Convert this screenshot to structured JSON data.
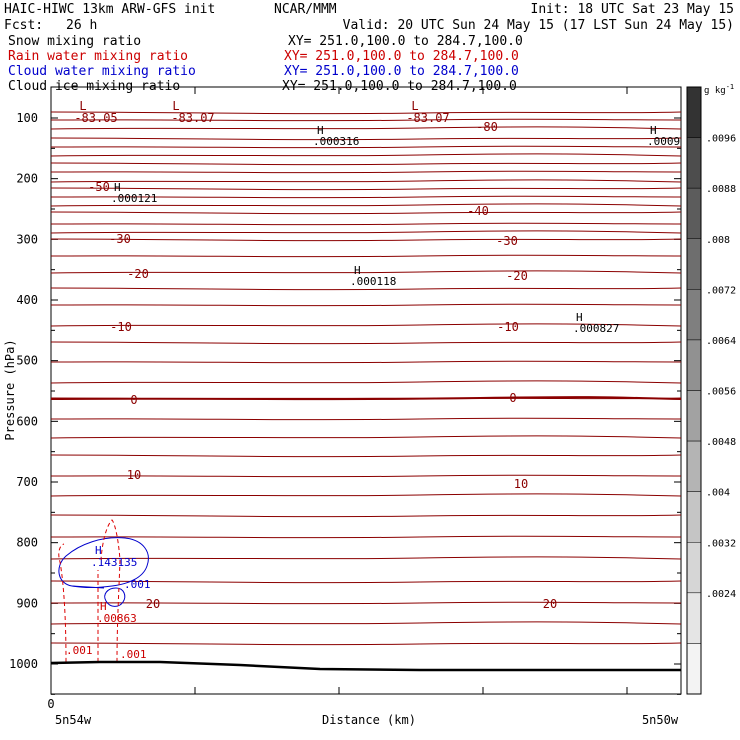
{
  "header": {
    "model": "HAIC-HIWC 13km ARW-GFS init",
    "org": "NCAR/MMM",
    "init": "Init: 18 UTC Sat 23 May 15",
    "fcst_label": "Fcst:",
    "fcst_value": "26 h",
    "valid": "Valid: 20 UTC Sun 24 May 15 (17 LST Sun 24 May 15)",
    "fields": [
      {
        "name": "Snow mixing ratio",
        "xy": "XY= 251.0,100.0 to 284.7,100.0",
        "color": "#000000"
      },
      {
        "name": "Rain water mixing ratio",
        "xy": "XY= 251.0,100.0 to 284.7,100.0",
        "color": "#cc0000"
      },
      {
        "name": "Cloud water mixing ratio",
        "xy": "XY= 251.0,100.0 to 284.7,100.0",
        "color": "#0000cc"
      },
      {
        "name": "Cloud ice mixing ratio",
        "xy": "XY= 251.0,100.0 to 284.7,100.0",
        "color": "#000000"
      }
    ]
  },
  "colorbar": {
    "unit": "g kg",
    "unit_exp": "-1",
    "labels": [
      ".0096",
      ".0088",
      ".008",
      ".0072",
      ".0064",
      ".0056",
      ".0048",
      ".004",
      ".0032",
      ".0024"
    ],
    "shades": [
      "#333333",
      "#4d4d4d",
      "#5c5c5c",
      "#6e6e6e",
      "#7f7f7f",
      "#919191",
      "#a2a2a2",
      "#b4b4b4",
      "#c5c5c5",
      "#d6d6d6",
      "#e5e5e5",
      "#f3f3f3"
    ]
  },
  "chart_data": {
    "type": "line",
    "title": "",
    "ylabel": "Pressure (hPa)",
    "xlabel": "Distance (km)",
    "ylim": [
      1050,
      50
    ],
    "yticks": [
      100,
      200,
      300,
      400,
      500,
      600,
      700,
      800,
      900,
      1000
    ],
    "x_origin_label": "0",
    "x_left_label": "5n54w",
    "x_right_label": "5n50w",
    "temperature_isotherms": {
      "color": "#8b0000",
      "labels": [
        {
          "value": "-83.05",
          "kind": "L"
        },
        {
          "value": "-83.07",
          "kind": "L"
        },
        {
          "value": "-83.07",
          "kind": "L"
        },
        {
          "value": "-80"
        },
        {
          "value": "-50"
        },
        {
          "value": "-40"
        },
        {
          "value": "-30"
        },
        {
          "value": "-30"
        },
        {
          "value": "-20"
        },
        {
          "value": "-20"
        },
        {
          "value": "-10"
        },
        {
          "value": "-10"
        },
        {
          "value": "0"
        },
        {
          "value": "0"
        },
        {
          "value": "10"
        },
        {
          "value": "10"
        },
        {
          "value": "20"
        },
        {
          "value": "20"
        }
      ]
    },
    "extrema": [
      {
        "kind": "H",
        "value": ".000316"
      },
      {
        "kind": "H",
        "value": ".0009"
      },
      {
        "kind": "H",
        "value": ".000121"
      },
      {
        "kind": "H",
        "value": ".000118"
      },
      {
        "kind": "H",
        "value": ".000827"
      }
    ],
    "cloud_water": {
      "color": "#0000cc",
      "max_label": "H",
      "max_value": ".143135",
      "contour_label": ".001"
    },
    "rain_water": {
      "color": "#dd0000",
      "max_label": "H",
      "max_value": ".00863",
      "contour_labels": [
        ".001",
        ".001"
      ]
    }
  }
}
